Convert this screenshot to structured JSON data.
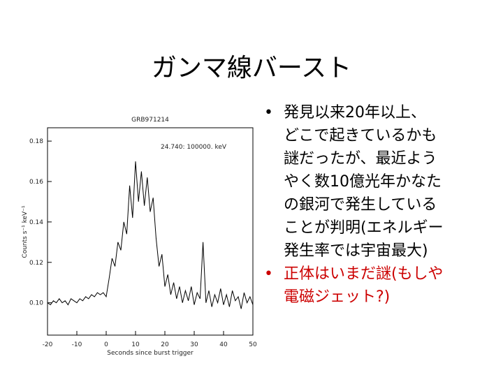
{
  "slide": {
    "title": "ガンマ線バースト",
    "bullets": [
      {
        "color": "#000000",
        "lines": [
          "発見以来20年以上、",
          "どこで起きているかも",
          "謎だったが、最近よう",
          "やく数10億光年かなた",
          "の銀河で発生している",
          "ことが判明(エネルギー",
          "発生率では宇宙最大)"
        ]
      },
      {
        "color": "#cc0000",
        "lines": [
          "正体はいまだ謎(もしや",
          "電磁ジェット?)"
        ]
      }
    ]
  },
  "chart_data": {
    "type": "line",
    "title": "GRB971214",
    "annotation": "24.740: 100000. keV",
    "x_label": "Seconds since burst trigger",
    "y_label": "Counts s⁻¹ keV⁻¹",
    "color": "#000000",
    "x": [
      -20,
      -19,
      -18,
      -17,
      -16,
      -15,
      -14,
      -13,
      -12,
      -11,
      -10,
      -9,
      -8,
      -7,
      -6,
      -5,
      -4,
      -3,
      -2,
      -1,
      0,
      1,
      2,
      3,
      4,
      5,
      6,
      7,
      8,
      9,
      10,
      11,
      12,
      13,
      14,
      15,
      16,
      17,
      18,
      19,
      20,
      21,
      22,
      23,
      24,
      25,
      26,
      27,
      28,
      29,
      30,
      31,
      32,
      33,
      34,
      35,
      36,
      37,
      38,
      39,
      40,
      41,
      42,
      43,
      44,
      45,
      46,
      47,
      48,
      49,
      50
    ],
    "values": [
      0.1,
      0.099,
      0.101,
      0.1,
      0.102,
      0.1,
      0.101,
      0.099,
      0.102,
      0.101,
      0.1,
      0.102,
      0.101,
      0.103,
      0.102,
      0.104,
      0.103,
      0.105,
      0.104,
      0.105,
      0.103,
      0.112,
      0.122,
      0.118,
      0.13,
      0.126,
      0.14,
      0.134,
      0.158,
      0.142,
      0.17,
      0.15,
      0.165,
      0.148,
      0.162,
      0.145,
      0.152,
      0.132,
      0.118,
      0.124,
      0.108,
      0.114,
      0.104,
      0.11,
      0.102,
      0.108,
      0.1,
      0.106,
      0.101,
      0.108,
      0.099,
      0.105,
      0.102,
      0.13,
      0.1,
      0.106,
      0.098,
      0.104,
      0.1,
      0.107,
      0.099,
      0.104,
      0.098,
      0.106,
      0.101,
      0.103,
      0.097,
      0.105,
      0.1,
      0.103,
      0.099
    ],
    "xlim": [
      -20,
      50
    ],
    "xticks": [
      -20,
      -10,
      0,
      10,
      20,
      30,
      40,
      50
    ],
    "ylim": [
      0.084,
      0.1866
    ],
    "yticks": [
      {
        "value": 0.1,
        "label": "0.10"
      },
      0.12,
      0.14,
      0.16,
      0.18
    ]
  }
}
